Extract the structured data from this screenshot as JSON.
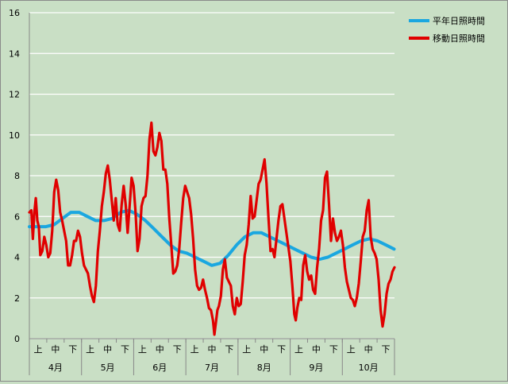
{
  "chart_data": {
    "type": "line",
    "ylim": [
      0,
      16
    ],
    "yticks": [
      0,
      2,
      4,
      6,
      8,
      10,
      12,
      14,
      16
    ],
    "grid": true,
    "legend_position": "top-right",
    "x_sublabels": [
      "上",
      "中",
      "下",
      "上",
      "中",
      "下",
      "上",
      "中",
      "下",
      "上",
      "中",
      "下",
      "上",
      "中",
      "下",
      "上",
      "中",
      "下",
      "上",
      "中",
      "下"
    ],
    "months": [
      "4月",
      "5月",
      "6月",
      "7月",
      "8月",
      "9月",
      "10月"
    ],
    "series": [
      {
        "name": "平年日照時間",
        "color": "#1aa7e0",
        "points": [
          [
            0,
            5.5
          ],
          [
            1,
            5.5
          ],
          [
            2,
            5.5
          ],
          [
            3,
            5.6
          ],
          [
            4,
            5.9
          ],
          [
            5,
            6.2
          ],
          [
            6,
            6.2
          ],
          [
            7,
            6.0
          ],
          [
            8,
            5.8
          ],
          [
            9,
            5.8
          ],
          [
            10,
            5.9
          ],
          [
            11,
            6.2
          ],
          [
            12,
            6.3
          ],
          [
            13,
            6.1
          ],
          [
            14,
            5.8
          ],
          [
            15,
            5.4
          ],
          [
            16,
            5.0
          ],
          [
            17,
            4.6
          ],
          [
            18,
            4.3
          ],
          [
            19,
            4.2
          ],
          [
            20,
            4.0
          ],
          [
            21,
            3.8
          ],
          [
            22,
            3.6
          ],
          [
            23,
            3.7
          ],
          [
            24,
            4.1
          ],
          [
            25,
            4.6
          ],
          [
            26,
            5.0
          ],
          [
            27,
            5.2
          ],
          [
            28,
            5.2
          ],
          [
            29,
            5.0
          ],
          [
            30,
            4.8
          ],
          [
            31,
            4.6
          ],
          [
            32,
            4.4
          ],
          [
            33,
            4.2
          ],
          [
            34,
            4.0
          ],
          [
            35,
            3.9
          ],
          [
            36,
            4.0
          ],
          [
            37,
            4.2
          ],
          [
            38,
            4.4
          ],
          [
            39,
            4.6
          ],
          [
            40,
            4.8
          ],
          [
            41,
            4.9
          ],
          [
            42,
            4.8
          ],
          [
            43,
            4.6
          ],
          [
            44,
            4.4
          ]
        ]
      },
      {
        "name": "移動日照時間",
        "color": "#e00000",
        "points": [
          [
            0.0,
            6.2
          ],
          [
            0.2,
            6.3
          ],
          [
            0.35,
            4.9
          ],
          [
            0.5,
            6.2
          ],
          [
            0.65,
            6.9
          ],
          [
            0.8,
            5.8
          ],
          [
            0.95,
            5.5
          ],
          [
            1.1,
            4.1
          ],
          [
            1.3,
            4.3
          ],
          [
            1.5,
            5.0
          ],
          [
            1.7,
            4.6
          ],
          [
            1.9,
            4.0
          ],
          [
            2.1,
            4.2
          ],
          [
            2.3,
            5.3
          ],
          [
            2.5,
            7.2
          ],
          [
            2.7,
            7.8
          ],
          [
            2.9,
            7.3
          ],
          [
            3.1,
            6.2
          ],
          [
            3.3,
            5.8
          ],
          [
            3.5,
            5.3
          ],
          [
            3.7,
            4.8
          ],
          [
            3.9,
            3.6
          ],
          [
            4.1,
            3.6
          ],
          [
            4.3,
            4.1
          ],
          [
            4.5,
            4.8
          ],
          [
            4.7,
            4.8
          ],
          [
            4.9,
            5.3
          ],
          [
            5.1,
            5.0
          ],
          [
            5.3,
            4.2
          ],
          [
            5.5,
            3.6
          ],
          [
            5.7,
            3.4
          ],
          [
            5.9,
            3.2
          ],
          [
            6.1,
            2.6
          ],
          [
            6.3,
            2.1
          ],
          [
            6.5,
            1.8
          ],
          [
            6.7,
            2.6
          ],
          [
            6.9,
            4.3
          ],
          [
            7.1,
            5.3
          ],
          [
            7.3,
            6.5
          ],
          [
            7.5,
            7.2
          ],
          [
            7.7,
            8.1
          ],
          [
            7.9,
            8.5
          ],
          [
            8.1,
            7.8
          ],
          [
            8.3,
            6.8
          ],
          [
            8.5,
            5.8
          ],
          [
            8.7,
            6.9
          ],
          [
            8.9,
            5.6
          ],
          [
            9.1,
            5.3
          ],
          [
            9.3,
            6.6
          ],
          [
            9.5,
            7.5
          ],
          [
            9.7,
            6.6
          ],
          [
            9.9,
            5.2
          ],
          [
            10.1,
            6.5
          ],
          [
            10.3,
            7.9
          ],
          [
            10.5,
            7.5
          ],
          [
            10.7,
            6.2
          ],
          [
            10.9,
            4.3
          ],
          [
            11.1,
            4.9
          ],
          [
            11.3,
            6.5
          ],
          [
            11.5,
            6.9
          ],
          [
            11.7,
            7.0
          ],
          [
            11.9,
            8.0
          ],
          [
            12.1,
            9.8
          ],
          [
            12.3,
            10.6
          ],
          [
            12.5,
            9.2
          ],
          [
            12.7,
            9.0
          ],
          [
            12.9,
            9.4
          ],
          [
            13.1,
            10.1
          ],
          [
            13.3,
            9.7
          ],
          [
            13.5,
            8.3
          ],
          [
            13.7,
            8.3
          ],
          [
            13.9,
            7.6
          ],
          [
            14.1,
            5.9
          ],
          [
            14.3,
            4.6
          ],
          [
            14.5,
            3.2
          ],
          [
            14.7,
            3.3
          ],
          [
            14.9,
            3.6
          ],
          [
            15.1,
            4.4
          ],
          [
            15.3,
            5.7
          ],
          [
            15.5,
            6.9
          ],
          [
            15.7,
            7.5
          ],
          [
            15.9,
            7.2
          ],
          [
            16.1,
            6.9
          ],
          [
            16.3,
            6.1
          ],
          [
            16.5,
            4.9
          ],
          [
            16.7,
            3.4
          ],
          [
            16.9,
            2.6
          ],
          [
            17.1,
            2.4
          ],
          [
            17.3,
            2.5
          ],
          [
            17.5,
            2.9
          ],
          [
            17.7,
            2.4
          ],
          [
            17.9,
            2.0
          ],
          [
            18.1,
            1.5
          ],
          [
            18.3,
            1.4
          ],
          [
            18.5,
            0.9
          ],
          [
            18.65,
            0.2
          ],
          [
            18.8,
            0.8
          ],
          [
            18.95,
            1.4
          ],
          [
            19.1,
            1.6
          ],
          [
            19.3,
            2.1
          ],
          [
            19.5,
            3.4
          ],
          [
            19.7,
            3.9
          ],
          [
            19.9,
            3.0
          ],
          [
            20.1,
            2.8
          ],
          [
            20.3,
            2.6
          ],
          [
            20.5,
            1.6
          ],
          [
            20.7,
            1.2
          ],
          [
            20.9,
            2.0
          ],
          [
            21.1,
            1.6
          ],
          [
            21.3,
            1.7
          ],
          [
            21.5,
            2.8
          ],
          [
            21.7,
            4.1
          ],
          [
            21.9,
            4.6
          ],
          [
            22.1,
            5.6
          ],
          [
            22.3,
            7.0
          ],
          [
            22.5,
            5.9
          ],
          [
            22.7,
            6.0
          ],
          [
            22.9,
            6.8
          ],
          [
            23.1,
            7.6
          ],
          [
            23.3,
            7.8
          ],
          [
            23.5,
            8.3
          ],
          [
            23.7,
            8.8
          ],
          [
            23.9,
            7.6
          ],
          [
            24.1,
            5.9
          ],
          [
            24.3,
            4.3
          ],
          [
            24.5,
            4.4
          ],
          [
            24.7,
            4.0
          ],
          [
            24.9,
            4.9
          ],
          [
            25.1,
            5.8
          ],
          [
            25.3,
            6.5
          ],
          [
            25.5,
            6.6
          ],
          [
            25.7,
            5.9
          ],
          [
            25.9,
            5.2
          ],
          [
            26.1,
            4.5
          ],
          [
            26.3,
            3.8
          ],
          [
            26.5,
            2.6
          ],
          [
            26.7,
            1.2
          ],
          [
            26.85,
            0.9
          ],
          [
            27.0,
            1.5
          ],
          [
            27.2,
            2.0
          ],
          [
            27.4,
            1.9
          ],
          [
            27.6,
            3.6
          ],
          [
            27.8,
            4.1
          ],
          [
            28.0,
            3.3
          ],
          [
            28.2,
            2.9
          ],
          [
            28.4,
            3.1
          ],
          [
            28.6,
            2.4
          ],
          [
            28.8,
            2.2
          ],
          [
            29.0,
            3.5
          ],
          [
            29.2,
            4.4
          ],
          [
            29.4,
            5.8
          ],
          [
            29.6,
            6.3
          ],
          [
            29.8,
            7.9
          ],
          [
            30.0,
            8.2
          ],
          [
            30.2,
            6.6
          ],
          [
            30.4,
            4.8
          ],
          [
            30.6,
            5.9
          ],
          [
            30.8,
            5.2
          ],
          [
            31.0,
            4.8
          ],
          [
            31.2,
            5.0
          ],
          [
            31.4,
            5.3
          ],
          [
            31.6,
            4.6
          ],
          [
            31.8,
            3.5
          ],
          [
            32.0,
            2.8
          ],
          [
            32.2,
            2.4
          ],
          [
            32.4,
            2.0
          ],
          [
            32.6,
            1.9
          ],
          [
            32.8,
            1.6
          ],
          [
            33.0,
            2.0
          ],
          [
            33.2,
            2.7
          ],
          [
            33.4,
            3.8
          ],
          [
            33.6,
            5.0
          ],
          [
            33.8,
            5.3
          ],
          [
            34.0,
            6.3
          ],
          [
            34.2,
            6.8
          ],
          [
            34.4,
            5.0
          ],
          [
            34.6,
            4.4
          ],
          [
            34.8,
            4.2
          ],
          [
            35.0,
            3.9
          ],
          [
            35.2,
            2.9
          ],
          [
            35.4,
            1.4
          ],
          [
            35.6,
            0.6
          ],
          [
            35.8,
            1.2
          ],
          [
            36.0,
            2.2
          ],
          [
            36.2,
            2.7
          ],
          [
            36.4,
            2.9
          ],
          [
            36.6,
            3.3
          ],
          [
            36.8,
            3.5
          ]
        ]
      }
    ]
  }
}
